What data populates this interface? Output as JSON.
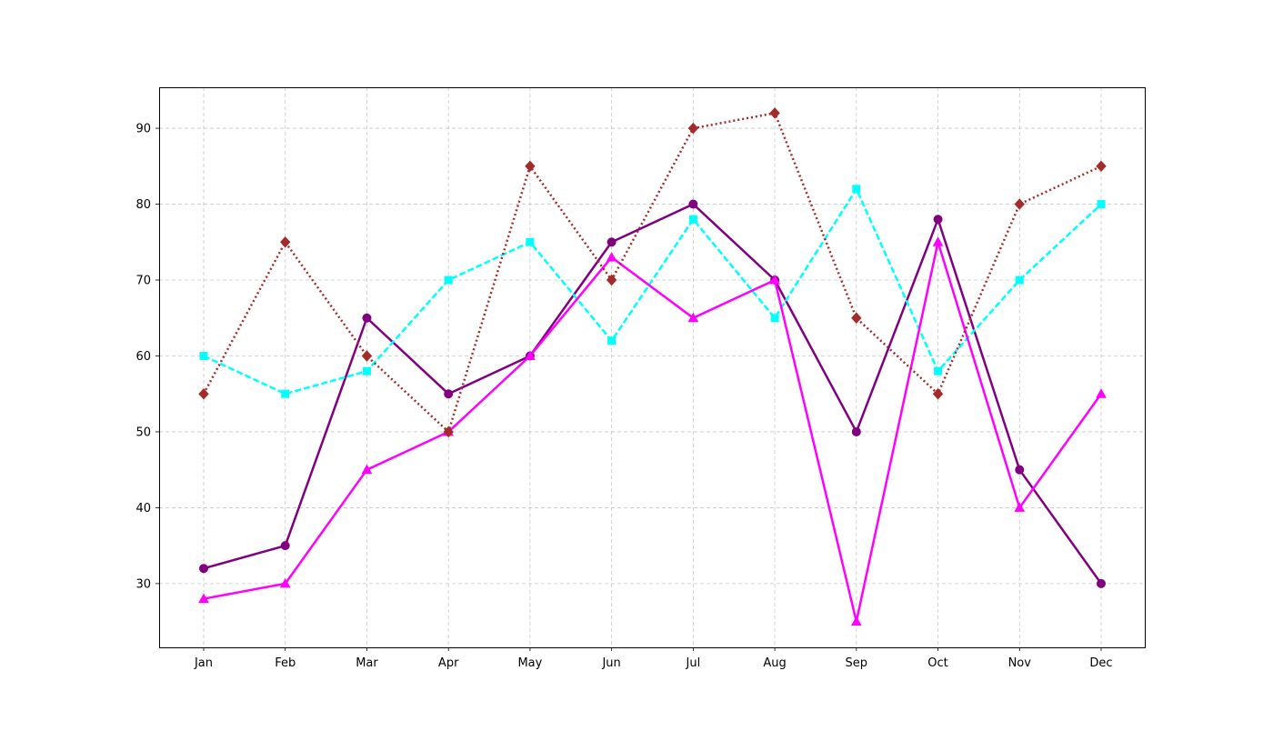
{
  "chart_data": {
    "type": "line",
    "title": "",
    "xlabel": "",
    "ylabel": "",
    "categories": [
      "Jan",
      "Feb",
      "Mar",
      "Apr",
      "May",
      "Jun",
      "Jul",
      "Aug",
      "Sep",
      "Oct",
      "Nov",
      "Dec"
    ],
    "ylim": [
      21.6,
      95.4
    ],
    "yticks": [
      30,
      40,
      50,
      60,
      70,
      80,
      90
    ],
    "grid": true,
    "legend": "none",
    "series": [
      {
        "color": "#800080",
        "line_style": "solid",
        "marker": "circle",
        "values": [
          32,
          35,
          65,
          55,
          60,
          75,
          80,
          70,
          50,
          78,
          45,
          30
        ]
      },
      {
        "color": "#00ffff",
        "line_style": "dashed",
        "marker": "square",
        "values": [
          60,
          55,
          58,
          70,
          75,
          62,
          78,
          65,
          82,
          58,
          70,
          80
        ]
      },
      {
        "color": "#ff00ff",
        "line_style": "solid",
        "marker": "triangle",
        "values": [
          28,
          30,
          45,
          50,
          60,
          73,
          65,
          70,
          25,
          75,
          40,
          55
        ]
      },
      {
        "color": "#a52a2a",
        "line_style": "dotted",
        "marker": "diamond",
        "values": [
          55,
          75,
          60,
          50,
          85,
          70,
          90,
          92,
          65,
          55,
          80,
          85
        ]
      }
    ]
  }
}
